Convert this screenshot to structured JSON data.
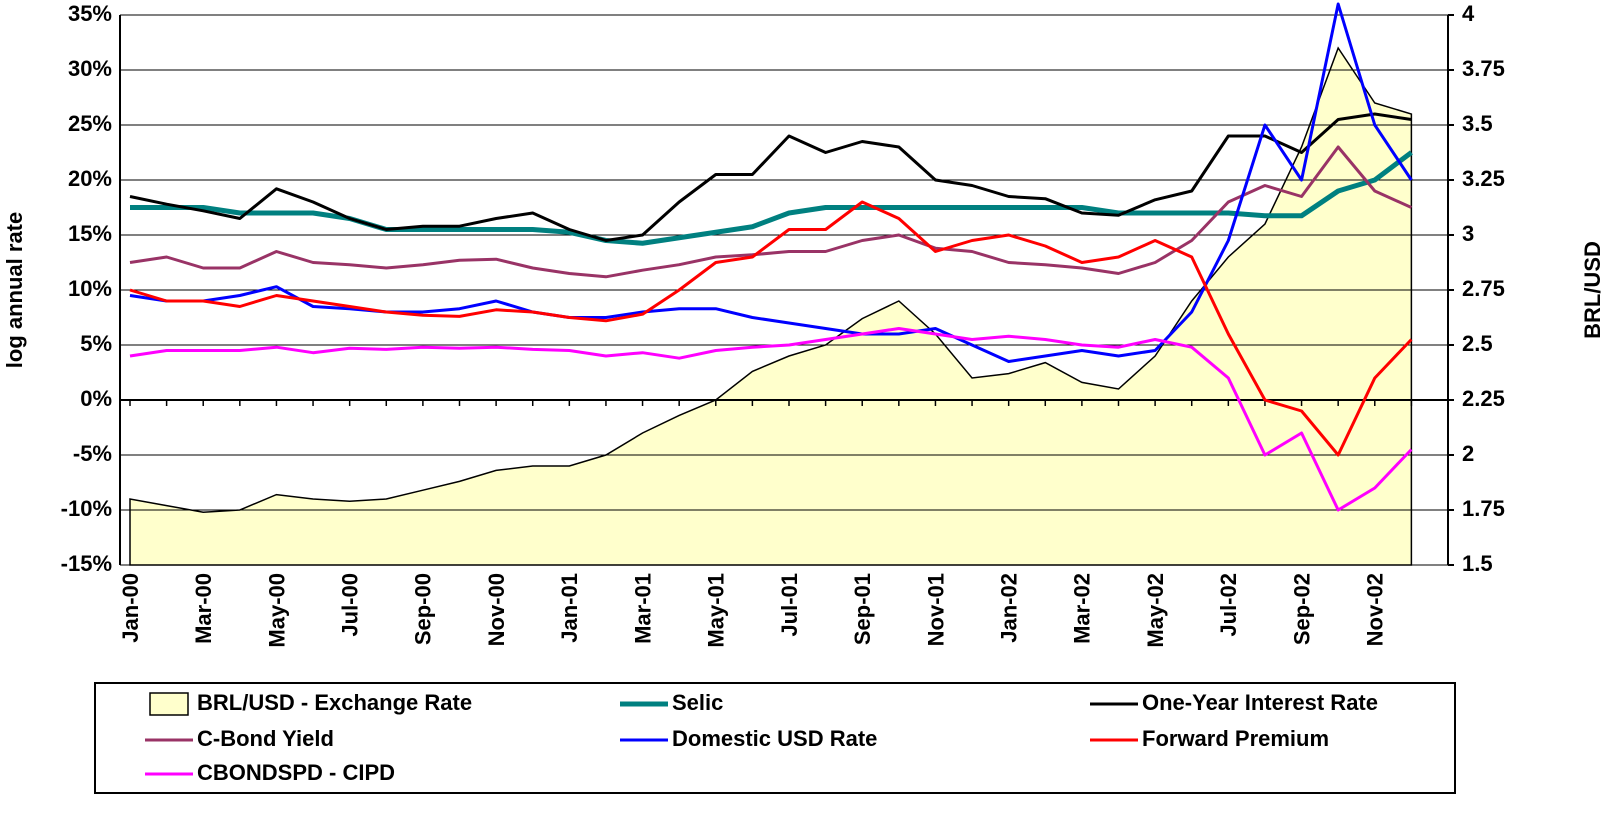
{
  "chart_data": {
    "type": "line",
    "y_label": "log annual rate",
    "y2_label": "BRL/USD",
    "categories": [
      "Jan-00",
      null,
      "Mar-00",
      null,
      "May-00",
      null,
      "Jul-00",
      null,
      "Sep-00",
      null,
      "Nov-00",
      null,
      "Jan-01",
      null,
      "Mar-01",
      null,
      "May-01",
      null,
      "Jul-01",
      null,
      "Sep-01",
      null,
      "Nov-01",
      null,
      "Jan-02",
      null,
      "Mar-02",
      null,
      "May-02",
      null,
      "Jul-02",
      null,
      "Sep-02",
      null,
      "Nov-02",
      null
    ],
    "ylim": [
      -15,
      35
    ],
    "yticks": [
      {
        "value": -15,
        "label": "-15%"
      },
      {
        "value": -10,
        "label": "-10%"
      },
      {
        "value": -5,
        "label": "-5%"
      },
      {
        "value": 0,
        "label": "0%"
      },
      {
        "value": 5,
        "label": "5%"
      },
      {
        "value": 10,
        "label": "10%"
      },
      {
        "value": 15,
        "label": "15%"
      },
      {
        "value": 20,
        "label": "20%"
      },
      {
        "value": 25,
        "label": "25%"
      },
      {
        "value": 30,
        "label": "30%"
      },
      {
        "value": 35,
        "label": "35%"
      }
    ],
    "y2lim": [
      1.5,
      4
    ],
    "y2ticks": [
      1.5,
      1.75,
      2,
      2.25,
      2.5,
      2.75,
      3,
      3.25,
      3.5,
      3.75,
      4
    ],
    "grid": true,
    "series": [
      {
        "name": "BRL/USD - Exchange Rate",
        "color": "#ffffcc",
        "kind": "area",
        "axis": "y2",
        "values": [
          1.8,
          1.77,
          1.74,
          1.75,
          1.82,
          1.8,
          1.79,
          1.8,
          1.84,
          1.88,
          1.93,
          1.95,
          1.95,
          2.0,
          2.1,
          2.18,
          2.25,
          2.38,
          2.45,
          2.5,
          2.62,
          2.7,
          2.55,
          2.35,
          2.37,
          2.42,
          2.33,
          2.3,
          2.45,
          2.7,
          2.9,
          3.05,
          3.4,
          3.85,
          3.6,
          3.55
        ]
      },
      {
        "name": "Selic",
        "color": "#008080",
        "width": 5,
        "values": [
          17.5,
          17.5,
          17.5,
          17,
          17,
          17,
          16.5,
          15.5,
          15.5,
          15.5,
          15.5,
          15.5,
          15.25,
          14.5,
          14.25,
          14.75,
          15.25,
          15.75,
          17,
          17.5,
          17.5,
          17.5,
          17.5,
          17.5,
          17.5,
          17.5,
          17.5,
          17,
          17,
          17,
          17,
          16.75,
          16.75,
          19,
          20,
          22.5
        ]
      },
      {
        "name": "One-Year Interest Rate",
        "color": "#000000",
        "width": 3,
        "values": [
          18.5,
          17.8,
          17.2,
          16.5,
          19.2,
          18,
          16.5,
          15.5,
          15.8,
          15.8,
          16.5,
          17,
          15.5,
          14.5,
          15,
          18,
          20.5,
          20.5,
          24,
          22.5,
          23.5,
          23,
          20,
          19.5,
          18.5,
          18.3,
          17,
          16.8,
          18.2,
          19,
          24,
          24,
          22.5,
          25.5,
          26,
          25.5
        ]
      },
      {
        "name": "C-Bond Yield",
        "color": "#993366",
        "width": 3,
        "values": [
          12.5,
          13,
          12,
          12,
          13.5,
          12.5,
          12.3,
          12,
          12.3,
          12.7,
          12.8,
          12,
          11.5,
          11.2,
          11.8,
          12.3,
          13,
          13.2,
          13.5,
          13.5,
          14.5,
          15,
          13.8,
          13.5,
          12.5,
          12.3,
          12,
          11.5,
          12.5,
          14.5,
          18,
          19.5,
          18.5,
          23,
          19,
          17.5
        ]
      },
      {
        "name": "Domestic USD Rate",
        "color": "#0000ff",
        "width": 3,
        "values": [
          9.5,
          9,
          9,
          9.5,
          10.3,
          8.5,
          8.3,
          8,
          8,
          8.3,
          9,
          8,
          7.5,
          7.5,
          8,
          8.3,
          8.3,
          7.5,
          7,
          6.5,
          6,
          6,
          6.5,
          5,
          3.5,
          4,
          4.5,
          4,
          4.5,
          8,
          14.5,
          25,
          20,
          36,
          25,
          20
        ]
      },
      {
        "name": "Forward Premium",
        "color": "#ff0000",
        "width": 3,
        "values": [
          10,
          9,
          9,
          8.5,
          9.5,
          9,
          8.5,
          8,
          7.7,
          7.6,
          8.2,
          8,
          7.5,
          7.2,
          7.8,
          10,
          12.5,
          13,
          15.5,
          15.5,
          18,
          16.5,
          13.5,
          14.5,
          15,
          14,
          12.5,
          13,
          14.5,
          13,
          6,
          0,
          -1,
          -5,
          2,
          5.5
        ]
      },
      {
        "name": "CBONDSPD - CIPD",
        "color": "#ff00ff",
        "width": 3,
        "values": [
          4,
          4.5,
          4.5,
          4.5,
          4.8,
          4.3,
          4.7,
          4.6,
          4.8,
          4.7,
          4.8,
          4.6,
          4.5,
          4,
          4.3,
          3.8,
          4.5,
          4.8,
          5,
          5.5,
          6,
          6.5,
          6,
          5.5,
          5.8,
          5.5,
          5,
          4.8,
          5.5,
          4.8,
          2,
          -5,
          -3,
          -10,
          -8,
          -4.5
        ]
      }
    ]
  }
}
